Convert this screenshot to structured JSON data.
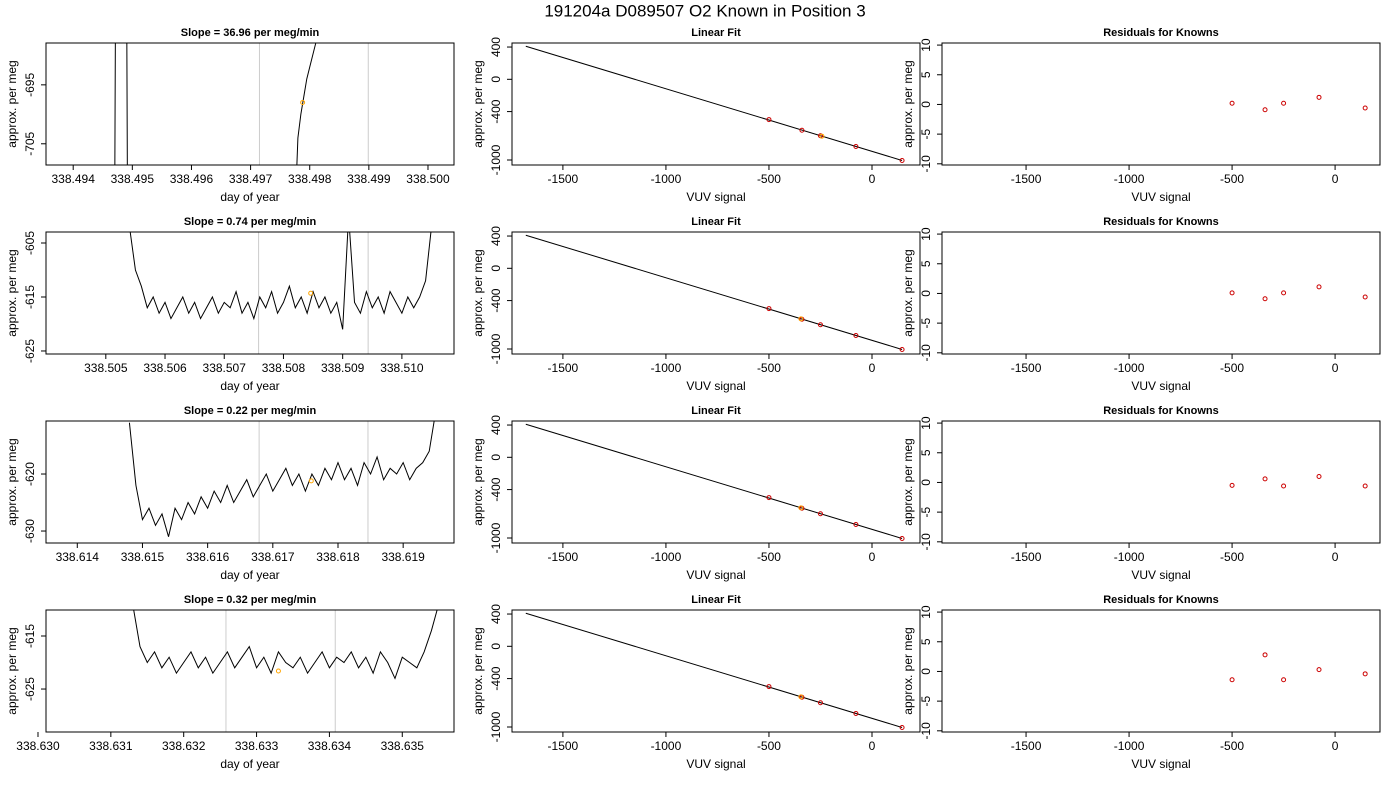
{
  "title": "191204a     D089507   O2 Known in Position  3",
  "chart_data": [
    {
      "type": "line",
      "title": "Slope =  36.96  per meg/min",
      "xlabel": "day of year",
      "ylabel": "approx. per meg",
      "x": [
        338.4947,
        338.49472,
        338.4949,
        338.49492,
        338.4963,
        338.49777,
        338.4978,
        338.49785,
        338.4979,
        338.49795,
        338.498,
        338.4981,
        338.49817
      ],
      "values": [
        -720,
        -670,
        -670,
        -720,
        null,
        -712,
        -704,
        -700,
        -697,
        -694,
        -692,
        -688,
        -680
      ],
      "color": "#000000",
      "xlim": [
        338.49354,
        338.50044
      ],
      "xticks": [
        338.494,
        338.495,
        338.496,
        338.497,
        338.498,
        338.499,
        {
          "value": 338.5,
          "label": "338.500"
        }
      ],
      "ylim": [
        -708.6,
        -687.9
      ],
      "yticks": [
        -695,
        -705
      ],
      "vlines": [
        338.49715,
        338.49899
      ],
      "vline_color": "#cccccc",
      "highlight": {
        "x": 338.49788,
        "y": -698,
        "color": "orange"
      }
    },
    {
      "type": "scatter",
      "title": "Linear Fit",
      "xlabel": "VUV signal",
      "ylabel": "approx. per meg",
      "x": [
        -500,
        -340,
        -250,
        -78,
        146
      ],
      "values": [
        -499,
        -631,
        -700,
        -833,
        -1006
      ],
      "color": "#cc0000",
      "fit_line": {
        "x": [
          -1680,
          146
        ],
        "y": [
          410,
          -1006
        ]
      },
      "highlight": {
        "x": -243,
        "y": -705,
        "color": "orange"
      },
      "xlim": [
        -1747,
        233
      ],
      "xticks": [
        -1500,
        -1000,
        -500,
        0
      ],
      "ylim": [
        -1062,
        450
      ],
      "yticks": [
        400,
        0,
        -400,
        -1000
      ]
    },
    {
      "type": "scatter",
      "title": "Residuals for Knowns",
      "xlabel": "VUV signal",
      "ylabel": "approx. per meg",
      "x": [
        -500,
        -340,
        -250,
        -78,
        146
      ],
      "values": [
        0.2,
        -0.9,
        0.2,
        1.2,
        -0.6
      ],
      "color": "#cc0000",
      "xlim": [
        -1908,
        218
      ],
      "xticks": [
        -1500,
        -1000,
        -500,
        0
      ],
      "ylim": [
        -10.2,
        10.35
      ],
      "yticks": [
        10,
        5,
        0,
        -5,
        -10
      ]
    },
    {
      "type": "line",
      "title": "Slope =  0.74  per meg/min",
      "xlabel": "day of year",
      "ylabel": "approx. per meg",
      "x": [
        338.5054,
        338.5055,
        338.5056,
        338.5057,
        338.5058,
        338.5059,
        338.506,
        338.5061,
        338.5062,
        338.5063,
        338.5064,
        338.5065,
        338.5066,
        338.5067,
        338.5068,
        338.5069,
        338.507,
        338.5071,
        338.5072,
        338.5073,
        338.5074,
        338.5075,
        338.5076,
        338.5077,
        338.5078,
        338.5079,
        338.508,
        338.5081,
        338.5082,
        338.5083,
        338.5084,
        338.5085,
        338.5086,
        338.5087,
        338.5088,
        338.5089,
        338.509,
        338.5091,
        338.5092,
        338.5093,
        338.5094,
        338.5095,
        338.5096,
        338.5097,
        338.5098,
        338.5099,
        338.51,
        338.5101,
        338.5102,
        338.5103,
        338.5104,
        338.5105
      ],
      "values": [
        -602,
        -610,
        -613,
        -617,
        -615,
        -618,
        -616,
        -619,
        -617,
        -615,
        -618,
        -616,
        -619,
        -617,
        -615,
        -618,
        -616,
        -617,
        -614,
        -618,
        -616,
        -619,
        -615,
        -617,
        -614,
        -618,
        -616,
        -613,
        -617,
        -615,
        -618,
        -614,
        -617,
        -615,
        -618,
        -616,
        -621,
        -600,
        -616,
        -618,
        -614,
        -617,
        -615,
        -618,
        -614,
        -616,
        -618,
        -615,
        -617,
        -615,
        -612,
        -602
      ],
      "color": "#000000",
      "xlim": [
        338.50399,
        338.51088
      ],
      "xticks": [
        338.505,
        338.506,
        338.507,
        338.508,
        338.509,
        {
          "value": 338.51,
          "label": "338.510"
        }
      ],
      "ylim": [
        -625.56,
        -602.96
      ],
      "yticks": [
        -605,
        -615,
        -625
      ],
      "vlines": [
        338.50758,
        338.50943
      ],
      "vline_color": "#cccccc",
      "highlight": {
        "x": 338.50846,
        "y": -614.3,
        "color": "orange"
      }
    },
    {
      "type": "scatter",
      "title": "Linear Fit",
      "xlabel": "VUV signal",
      "ylabel": "approx. per meg",
      "x": [
        -500,
        -340,
        -250,
        -78,
        146
      ],
      "values": [
        -499,
        -631,
        -700,
        -833,
        -1006
      ],
      "color": "#cc0000",
      "fit_line": {
        "x": [
          -1680,
          146
        ],
        "y": [
          410,
          -1006
        ]
      },
      "highlight": {
        "x": -345,
        "y": -627,
        "color": "orange"
      },
      "xlim": [
        -1747,
        233
      ],
      "xticks": [
        -1500,
        -1000,
        -500,
        0
      ],
      "ylim": [
        -1062,
        450
      ],
      "yticks": [
        400,
        0,
        -400,
        -1000
      ]
    },
    {
      "type": "scatter",
      "title": "Residuals for Knowns",
      "xlabel": "VUV signal",
      "ylabel": "approx. per meg",
      "x": [
        -500,
        -340,
        -250,
        -78,
        146
      ],
      "values": [
        0.1,
        -0.9,
        0.1,
        1.1,
        -0.6
      ],
      "color": "#cc0000",
      "xlim": [
        -1908,
        218
      ],
      "xticks": [
        -1500,
        -1000,
        -500,
        0
      ],
      "ylim": [
        -10.2,
        10.35
      ],
      "yticks": [
        10,
        5,
        0,
        -5,
        -10
      ]
    },
    {
      "type": "line",
      "title": "Slope =  0.22  per meg/min",
      "xlabel": "day of year",
      "ylabel": "approx. per meg",
      "x": [
        338.6148,
        338.6149,
        338.615,
        338.6151,
        338.6152,
        338.6153,
        338.6154,
        338.6155,
        338.6156,
        338.6157,
        338.6158,
        338.6159,
        338.616,
        338.6161,
        338.6162,
        338.6163,
        338.6164,
        338.6165,
        338.6166,
        338.6167,
        338.6168,
        338.6169,
        338.617,
        338.6171,
        338.6172,
        338.6173,
        338.6174,
        338.6175,
        338.6176,
        338.6177,
        338.6178,
        338.6179,
        338.618,
        338.6181,
        338.6182,
        338.6183,
        338.6184,
        338.6185,
        338.6186,
        338.6187,
        338.6188,
        338.6189,
        338.619,
        338.6191,
        338.6192,
        338.6193,
        338.6194,
        338.6195
      ],
      "values": [
        -611,
        -622,
        -628,
        -626,
        -629,
        -627,
        -631,
        -626,
        -628,
        -625,
        -627,
        -624,
        -626,
        -623,
        -625,
        -622,
        -625,
        -623,
        -621,
        -624,
        -622,
        -620,
        -623,
        -621,
        -619,
        -622,
        -620,
        -623,
        -620,
        -622,
        -619,
        -621,
        -618,
        -621,
        -619,
        -622,
        -618,
        -620,
        -617,
        -621,
        -619,
        -620,
        -618,
        -621,
        -619,
        -618,
        -616,
        -609
      ],
      "color": "#000000",
      "xlim": [
        338.61352,
        338.61978
      ],
      "xticks": [
        338.614,
        338.615,
        338.616,
        338.617,
        338.618,
        338.619
      ],
      "ylim": [
        -632.1,
        -610.7
      ],
      "yticks": [
        -620,
        -630
      ],
      "vlines": [
        338.61679,
        338.61846
      ],
      "vline_color": "#cccccc",
      "highlight": {
        "x": 338.61759,
        "y": -621.2,
        "color": "orange"
      }
    },
    {
      "type": "scatter",
      "title": "Linear Fit",
      "xlabel": "VUV signal",
      "ylabel": "approx. per meg",
      "x": [
        -500,
        -340,
        -250,
        -78,
        146
      ],
      "values": [
        -499,
        -631,
        -700,
        -833,
        -1006
      ],
      "color": "#cc0000",
      "fit_line": {
        "x": [
          -1680,
          146
        ],
        "y": [
          410,
          -1006
        ]
      },
      "highlight": {
        "x": -345,
        "y": -627,
        "color": "orange"
      },
      "xlim": [
        -1747,
        233
      ],
      "xticks": [
        -1500,
        -1000,
        -500,
        0
      ],
      "ylim": [
        -1062,
        450
      ],
      "yticks": [
        400,
        0,
        -400,
        -1000
      ]
    },
    {
      "type": "scatter",
      "title": "Residuals for Knowns",
      "xlabel": "VUV signal",
      "ylabel": "approx. per meg",
      "x": [
        -500,
        -340,
        -250,
        -78,
        146
      ],
      "values": [
        -0.5,
        0.6,
        -0.6,
        1.0,
        -0.6
      ],
      "color": "#cc0000",
      "xlim": [
        -1908,
        218
      ],
      "xticks": [
        -1500,
        -1000,
        -500,
        0
      ],
      "ylim": [
        -10.2,
        10.35
      ],
      "yticks": [
        10,
        5,
        0,
        -5,
        -10
      ]
    },
    {
      "type": "line",
      "title": "Slope =  0.32  per meg/min",
      "xlabel": "day of year",
      "ylabel": "approx. per meg",
      "x": [
        338.6313,
        338.6314,
        338.6315,
        338.6316,
        338.6317,
        338.6318,
        338.6319,
        338.632,
        338.6321,
        338.6322,
        338.6323,
        338.6324,
        338.6325,
        338.6326,
        338.6327,
        338.6328,
        338.6329,
        338.633,
        338.6331,
        338.6332,
        338.6333,
        338.6334,
        338.6335,
        338.6336,
        338.6337,
        338.6338,
        338.6339,
        338.634,
        338.6341,
        338.6342,
        338.6343,
        338.6344,
        338.6345,
        338.6346,
        338.6347,
        338.6348,
        338.6349,
        338.635,
        338.6351,
        338.6352,
        338.6353,
        338.6354,
        338.6355
      ],
      "values": [
        -609,
        -617,
        -620,
        -618,
        -621,
        -619,
        -622,
        -620,
        -618,
        -621,
        -619,
        -622,
        -620,
        -618,
        -621,
        -619,
        -617,
        -621,
        -619,
        -622,
        -618,
        -620,
        -621,
        -619,
        -622,
        -620,
        -618,
        -621,
        -619,
        -620,
        -618,
        -621,
        -619,
        -622,
        -618,
        -620,
        -623,
        -619,
        -620,
        -621,
        -618,
        -614,
        -609
      ],
      "color": "#000000",
      "xlim": [
        338.63011,
        338.63571
      ],
      "xticks": [
        {
          "value": 338.63,
          "label": "338.630"
        },
        338.631,
        338.632,
        338.633,
        338.634,
        338.635
      ],
      "ylim": [
        -633.1,
        -610.1
      ],
      "yticks": [
        -615,
        -625
      ],
      "vlines": [
        338.63258,
        338.63408
      ],
      "vline_color": "#cccccc",
      "highlight": {
        "x": 338.6333,
        "y": -621.6,
        "color": "orange"
      }
    },
    {
      "type": "scatter",
      "title": "Linear Fit",
      "xlabel": "VUV signal",
      "ylabel": "approx. per meg",
      "x": [
        -500,
        -340,
        -250,
        -78,
        146
      ],
      "values": [
        -499,
        -631,
        -700,
        -833,
        -1006
      ],
      "color": "#cc0000",
      "fit_line": {
        "x": [
          -1680,
          146
        ],
        "y": [
          410,
          -1006
        ]
      },
      "highlight": {
        "x": -345,
        "y": -627,
        "color": "orange"
      },
      "xlim": [
        -1747,
        233
      ],
      "xticks": [
        -1500,
        -1000,
        -500,
        0
      ],
      "ylim": [
        -1062,
        450
      ],
      "yticks": [
        400,
        0,
        -400,
        -1000
      ]
    },
    {
      "type": "scatter",
      "title": "Residuals for Knowns",
      "xlabel": "VUV signal",
      "ylabel": "approx. per meg",
      "x": [
        -500,
        -340,
        -250,
        -78,
        146
      ],
      "values": [
        -1.4,
        2.8,
        -1.4,
        0.3,
        -0.4
      ],
      "color": "#cc0000",
      "xlim": [
        -1908,
        218
      ],
      "xticks": [
        -1500,
        -1000,
        -500,
        0
      ],
      "ylim": [
        -10.2,
        10.35
      ],
      "yticks": [
        10,
        5,
        0,
        -5,
        -10
      ]
    }
  ]
}
